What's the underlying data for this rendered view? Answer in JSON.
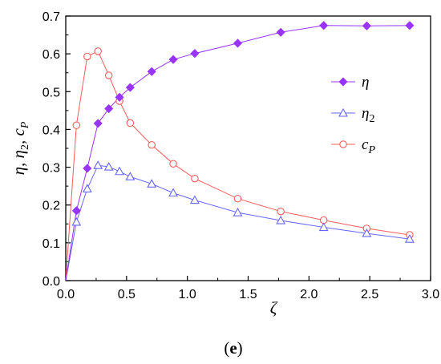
{
  "chart_data": {
    "type": "line",
    "xlabel": "ζ",
    "ylabel": {
      "parts": [
        "η",
        ", ",
        "η",
        "2",
        ", ",
        "c",
        "P"
      ]
    },
    "xlim": [
      0.0,
      3.0
    ],
    "ylim": [
      0.0,
      0.7
    ],
    "x_ticks": [
      "0.0",
      "0.5",
      "1.0",
      "1.5",
      "2.0",
      "2.5",
      "3.0"
    ],
    "y_ticks": [
      "0.0",
      "0.1",
      "0.2",
      "0.3",
      "0.4",
      "0.5",
      "0.6",
      "0.7"
    ],
    "x_tick_values": [
      0.0,
      0.5,
      1.0,
      1.5,
      2.0,
      2.5,
      3.0
    ],
    "y_tick_values": [
      0.0,
      0.1,
      0.2,
      0.3,
      0.4,
      0.5,
      0.6,
      0.7
    ],
    "grid": false,
    "legend_position": "right-middle",
    "panel_label": {
      "open": "(",
      "letter": "e",
      "close": ")"
    },
    "series": [
      {
        "name": "η",
        "name_sub": "",
        "marker": "diamond-filled",
        "color": "#9933ff",
        "x": [
          0.0,
          0.088,
          0.177,
          0.265,
          0.354,
          0.442,
          0.53,
          0.707,
          0.884,
          1.061,
          1.414,
          1.768,
          2.121,
          2.475,
          2.828
        ],
        "y": [
          0.0,
          0.185,
          0.297,
          0.416,
          0.455,
          0.485,
          0.511,
          0.553,
          0.585,
          0.601,
          0.628,
          0.657,
          0.675,
          0.674,
          0.675
        ]
      },
      {
        "name": "η",
        "name_sub": "2",
        "marker": "triangle-open",
        "color": "#6666ff",
        "x": [
          0.0,
          0.088,
          0.177,
          0.265,
          0.354,
          0.442,
          0.53,
          0.707,
          0.884,
          1.061,
          1.414,
          1.768,
          2.121,
          2.475,
          2.828
        ],
        "y": [
          0.0,
          0.155,
          0.243,
          0.305,
          0.301,
          0.289,
          0.275,
          0.256,
          0.232,
          0.213,
          0.18,
          0.159,
          0.141,
          0.125,
          0.11
        ]
      },
      {
        "name": "c",
        "name_sub": "P",
        "marker": "circle-open",
        "color": "#ff5a5a",
        "x": [
          0.0,
          0.088,
          0.177,
          0.265,
          0.354,
          0.442,
          0.53,
          0.707,
          0.884,
          1.061,
          1.414,
          1.768,
          2.121,
          2.475,
          2.828
        ],
        "y": [
          0.0,
          0.411,
          0.593,
          0.607,
          0.543,
          0.475,
          0.417,
          0.359,
          0.309,
          0.27,
          0.217,
          0.183,
          0.16,
          0.138,
          0.121
        ]
      }
    ]
  }
}
